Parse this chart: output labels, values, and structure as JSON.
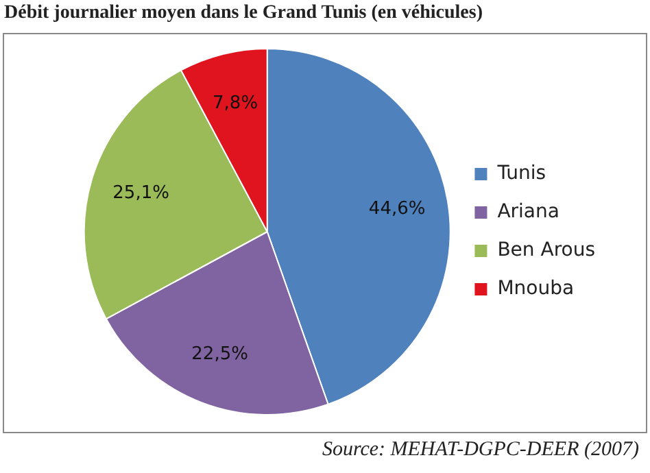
{
  "chart_data": {
    "type": "pie",
    "title": "Débit journalier moyen dans le Grand Tunis (en véhicules)",
    "categories": [
      "Tunis",
      "Ariana",
      "Ben Arous",
      "Mnouba"
    ],
    "values": [
      44.6,
      22.5,
      25.1,
      7.8
    ],
    "value_labels": [
      "44,6%",
      "22,5%",
      "25,1%",
      "7,8%"
    ],
    "colors": [
      "#4f81bd",
      "#8064a2",
      "#9bbb59",
      "#e0141e"
    ],
    "legend": "right",
    "annotations": [
      "Source: MEHAT-DGPC-DEER (2007)"
    ]
  }
}
